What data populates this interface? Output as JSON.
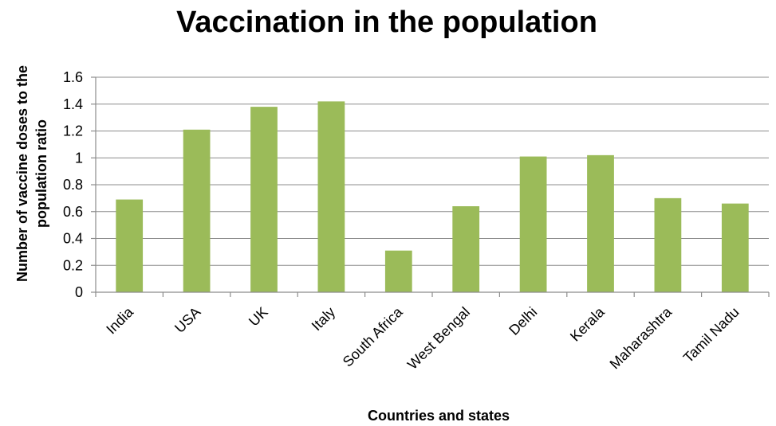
{
  "chart_data": {
    "type": "bar",
    "title": "Vaccination in the population",
    "xlabel": "Countries and states",
    "ylabel_lines": [
      "Number of vaccine doses to the",
      "population ratio"
    ],
    "ylim": [
      0,
      1.6
    ],
    "y_ticks": [
      "0",
      "0.2",
      "0.4",
      "0.6",
      "0.8",
      "1",
      "1.2",
      "1.4",
      "1.6"
    ],
    "grid": true,
    "legend": "none",
    "categories": [
      "India",
      "USA",
      "UK",
      "Italy",
      "South Africa",
      "West Bengal",
      "Delhi",
      "Kerala",
      "Maharashtra",
      "Tamil Nadu"
    ],
    "values": [
      0.69,
      1.21,
      1.38,
      1.42,
      0.31,
      0.64,
      1.01,
      1.02,
      0.7,
      0.66
    ],
    "bar_color": "#9bbb59"
  }
}
